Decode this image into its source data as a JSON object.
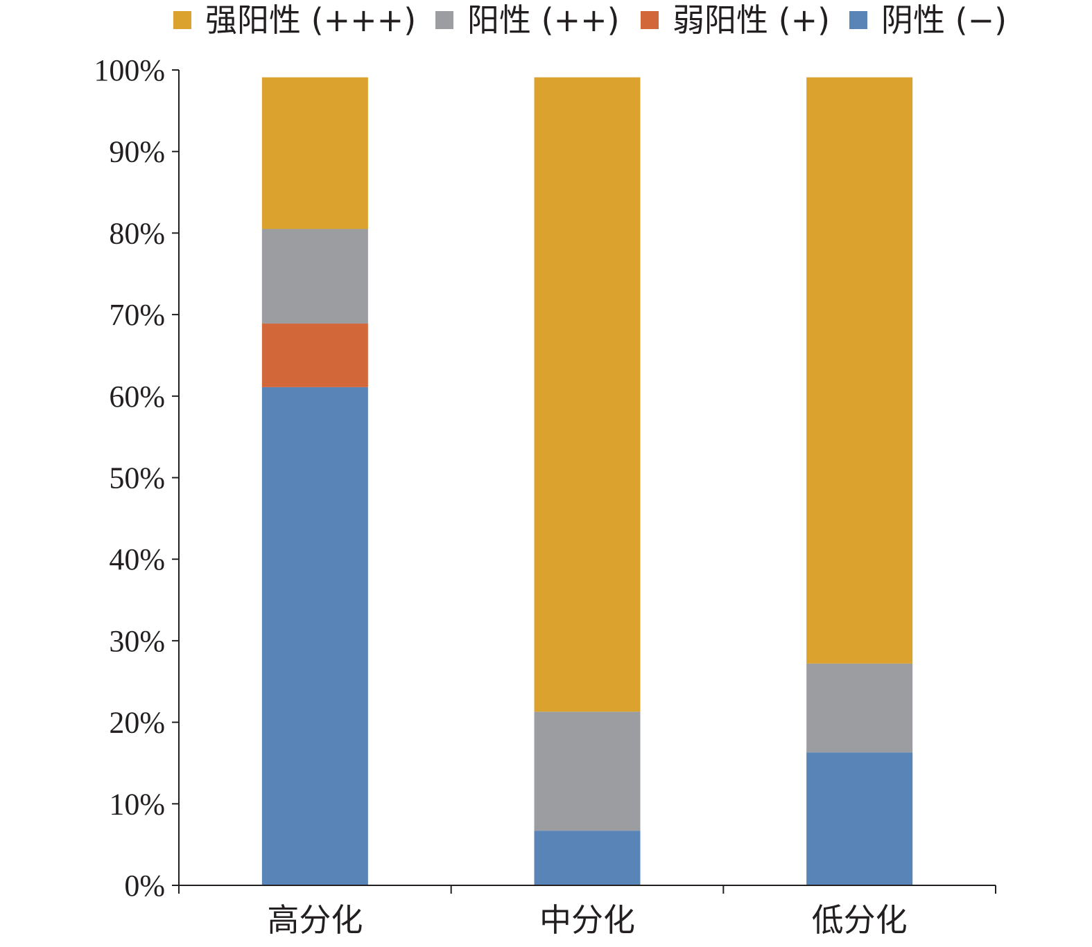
{
  "chart_data": {
    "type": "bar",
    "stacked": true,
    "title": "",
    "xlabel": "",
    "ylabel": "",
    "categories": [
      "高分化",
      "中分化",
      "低分化"
    ],
    "ylim": [
      0,
      100
    ],
    "yticks": [
      "0%",
      "10%",
      "20%",
      "30%",
      "40%",
      "50%",
      "60%",
      "70%",
      "80%",
      "90%",
      "100%"
    ],
    "legend_position": "top",
    "series": [
      {
        "name": "阴性 (−)",
        "color": "#5884b8",
        "values": [
          61.1,
          6.7,
          16.3
        ]
      },
      {
        "name": "弱阳性 (+)",
        "color": "#d2673a",
        "values": [
          7.8,
          0,
          0
        ]
      },
      {
        "name": "阳性 (++)",
        "color": "#9c9da0",
        "values": [
          11.6,
          14.6,
          10.9
        ]
      },
      {
        "name": "强阳性 (+++)",
        "color": "#dba22e",
        "values": [
          18.6,
          77.8,
          71.9
        ]
      }
    ],
    "legend_order": [
      "强阳性 (+++)",
      "阳性 (++)",
      "弱阳性 (+)",
      "阴性 (−)"
    ]
  }
}
